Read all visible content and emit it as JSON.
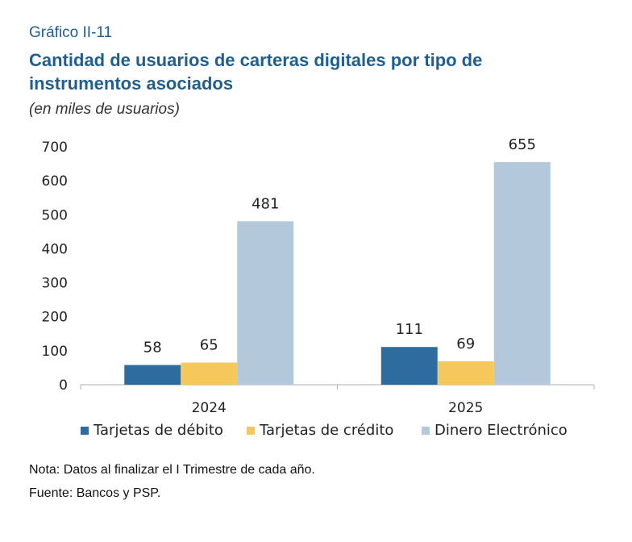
{
  "header": {
    "label": "Gráfico II-11",
    "title": "Cantidad de usuarios de carteras digitales por tipo de instrumentos asociados",
    "subtitle": "(en miles de usuarios)"
  },
  "notes": {
    "note": "Nota: Datos al finalizar el I Trimestre de cada año.",
    "source": "Fuente: Bancos y PSP."
  },
  "chart_data": {
    "type": "bar",
    "categories": [
      "2024",
      "2025"
    ],
    "series": [
      {
        "name": "Tarjetas de débito",
        "values": [
          58,
          111
        ],
        "color": "#2e6b9e"
      },
      {
        "name": "Tarjetas de crédito",
        "values": [
          65,
          69
        ],
        "color": "#f5c85a"
      },
      {
        "name": "Dinero Electrónico",
        "values": [
          481,
          655
        ],
        "color": "#b3c8da"
      }
    ],
    "ylim": [
      0,
      700
    ],
    "yticks": [
      0,
      100,
      200,
      300,
      400,
      500,
      600,
      700
    ],
    "grid": false,
    "legend_position": "bottom",
    "data_labels": true
  }
}
